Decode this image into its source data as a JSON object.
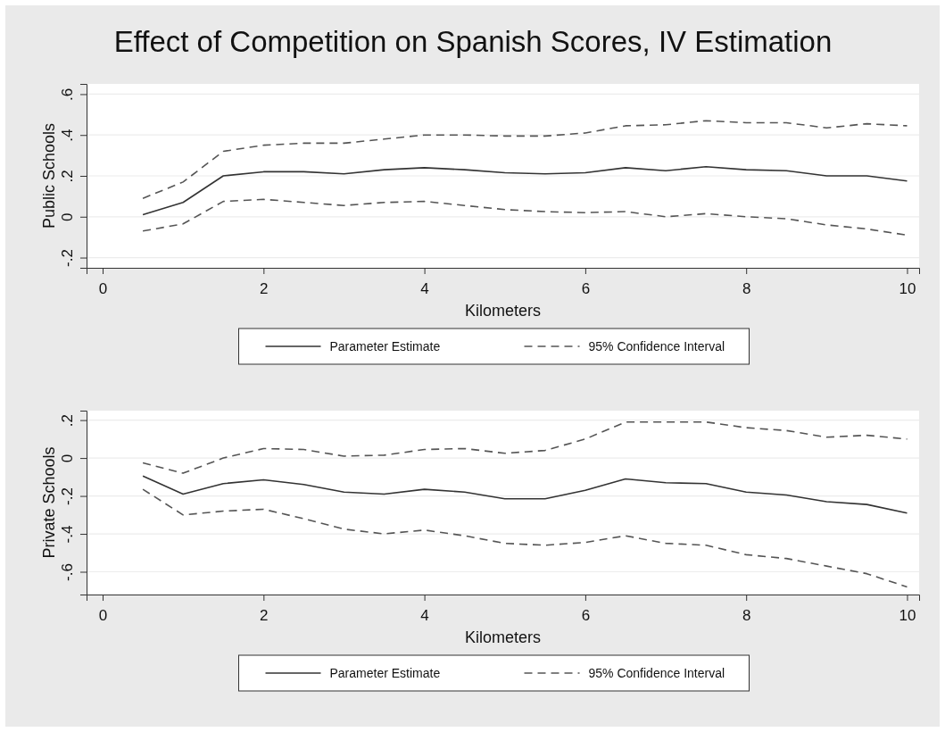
{
  "chart_data": [
    {
      "type": "line",
      "title": "Effect of Competition on Spanish Scores, IV Estimation",
      "xlabel": "Kilometers",
      "ylabel": "Public Schools",
      "x": [
        0.5,
        1,
        1.5,
        2,
        2.5,
        3,
        3.5,
        4,
        4.5,
        5,
        5.5,
        6,
        6.5,
        7,
        7.5,
        8,
        8.5,
        9,
        9.5,
        10
      ],
      "xlim": [
        -0.2,
        10.15
      ],
      "xticks": [
        0,
        2,
        4,
        6,
        8,
        10
      ],
      "ylim": [
        -0.25,
        0.65
      ],
      "yticks": [
        {
          "value": -0.2,
          "label": "-.2"
        },
        0,
        {
          "value": 0.2,
          "label": ".2"
        },
        {
          "value": 0.4,
          "label": ".4"
        },
        {
          "value": 0.6,
          "label": ".6"
        }
      ],
      "grid": "y",
      "legend": "bottom",
      "series": [
        {
          "name": "Parameter Estimate",
          "color": "#333333",
          "line_style": "solid",
          "values": [
            0.01,
            0.07,
            0.2,
            0.22,
            0.22,
            0.21,
            0.23,
            0.24,
            0.23,
            0.215,
            0.21,
            0.215,
            0.24,
            0.225,
            0.245,
            0.23,
            0.225,
            0.2,
            0.2,
            0.175
          ]
        },
        {
          "name": "95% Confidence Interval",
          "color": "#555555",
          "line_style": "dashed",
          "values": [
            0.09,
            0.17,
            0.32,
            0.35,
            0.36,
            0.36,
            0.38,
            0.4,
            0.4,
            0.395,
            0.395,
            0.41,
            0.445,
            0.45,
            0.47,
            0.46,
            0.46,
            0.435,
            0.455,
            0.445
          ]
        },
        {
          "color": "#555555",
          "line_style": "dashed",
          "values": [
            -0.07,
            -0.035,
            0.075,
            0.085,
            0.07,
            0.055,
            0.07,
            0.075,
            0.055,
            0.035,
            0.025,
            0.02,
            0.025,
            0,
            0.015,
            0,
            -0.01,
            -0.04,
            -0.06,
            -0.09
          ]
        }
      ]
    },
    {
      "type": "line",
      "xlabel": "Kilometers",
      "ylabel": "Private Schools",
      "x": [
        0.5,
        1,
        1.5,
        2,
        2.5,
        3,
        3.5,
        4,
        4.5,
        5,
        5.5,
        6,
        6.5,
        7,
        7.5,
        8,
        8.5,
        9,
        9.5,
        10
      ],
      "xlim": [
        -0.2,
        10.15
      ],
      "xticks": [
        0,
        2,
        4,
        6,
        8,
        10
      ],
      "ylim": [
        -0.72,
        0.25
      ],
      "yticks": [
        {
          "value": -0.6,
          "label": "-.6"
        },
        {
          "value": -0.4,
          "label": "-.4"
        },
        {
          "value": -0.2,
          "label": "-.2"
        },
        0,
        {
          "value": 0.2,
          "label": ".2"
        }
      ],
      "grid": "y",
      "legend": "bottom",
      "series": [
        {
          "name": "Parameter Estimate",
          "color": "#333333",
          "line_style": "solid",
          "values": [
            -0.095,
            -0.19,
            -0.135,
            -0.115,
            -0.14,
            -0.18,
            -0.19,
            -0.165,
            -0.18,
            -0.215,
            -0.215,
            -0.17,
            -0.11,
            -0.13,
            -0.135,
            -0.18,
            -0.195,
            -0.23,
            -0.245,
            -0.29
          ]
        },
        {
          "name": "95% Confidence Interval",
          "color": "#555555",
          "line_style": "dashed",
          "values": [
            -0.025,
            -0.08,
            0,
            0.05,
            0.045,
            0.01,
            0.015,
            0.045,
            0.05,
            0.025,
            0.04,
            0.1,
            0.19,
            0.19,
            0.19,
            0.16,
            0.145,
            0.11,
            0.12,
            0.1
          ]
        },
        {
          "color": "#555555",
          "line_style": "dashed",
          "values": [
            -0.165,
            -0.3,
            -0.28,
            -0.27,
            -0.32,
            -0.375,
            -0.4,
            -0.38,
            -0.41,
            -0.45,
            -0.46,
            -0.445,
            -0.41,
            -0.45,
            -0.46,
            -0.51,
            -0.53,
            -0.57,
            -0.61,
            -0.68
          ]
        }
      ]
    }
  ]
}
